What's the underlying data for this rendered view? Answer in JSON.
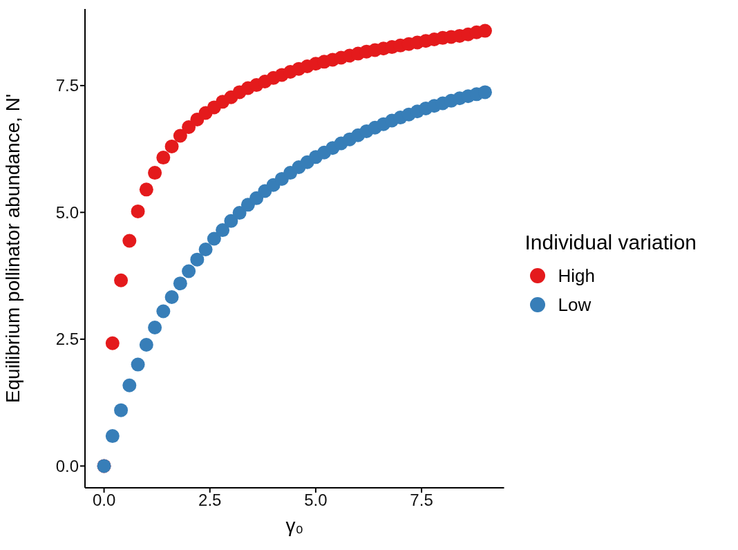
{
  "chart_data": {
    "type": "scatter",
    "xlabel": "γ₀",
    "ylabel": "Equilibrium pollinator abundance, N'",
    "legend_title": "Individual variation",
    "legend": "right",
    "marker": "circle",
    "grid": false,
    "x": [
      0,
      0.2,
      0.4,
      0.6,
      0.8,
      1,
      1.2,
      1.4,
      1.6,
      1.8,
      2,
      2.2,
      2.4,
      2.6,
      2.8,
      3,
      3.2,
      3.4,
      3.6,
      3.8,
      4,
      4.2,
      4.4,
      4.6,
      4.8,
      5,
      5.2,
      5.4,
      5.6,
      5.8,
      6,
      6.2,
      6.4,
      6.6,
      6.8,
      7,
      7.2,
      7.4,
      7.6,
      7.8,
      8,
      8.2,
      8.4,
      8.6,
      8.8,
      9
    ],
    "series": [
      {
        "name": "High",
        "color": "#e41a1c",
        "values": [
          0,
          2.42,
          3.66,
          4.44,
          5.02,
          5.45,
          5.78,
          6.08,
          6.3,
          6.51,
          6.68,
          6.83,
          6.96,
          7.07,
          7.18,
          7.27,
          7.37,
          7.45,
          7.51,
          7.58,
          7.65,
          7.71,
          7.77,
          7.83,
          7.88,
          7.93,
          7.97,
          8.01,
          8.05,
          8.09,
          8.13,
          8.17,
          8.2,
          8.23,
          8.26,
          8.29,
          8.32,
          8.35,
          8.38,
          8.41,
          8.44,
          8.46,
          8.48,
          8.51,
          8.55,
          8.58
        ]
      },
      {
        "name": "Low",
        "color": "#377eb8",
        "values": [
          0,
          0.59,
          1.1,
          1.59,
          2,
          2.39,
          2.73,
          3.05,
          3.33,
          3.6,
          3.84,
          4.07,
          4.27,
          4.48,
          4.65,
          4.83,
          4.99,
          5.15,
          5.28,
          5.42,
          5.54,
          5.66,
          5.78,
          5.89,
          5.99,
          6.09,
          6.18,
          6.27,
          6.36,
          6.44,
          6.52,
          6.6,
          6.67,
          6.74,
          6.81,
          6.87,
          6.93,
          6.99,
          7.05,
          7.1,
          7.15,
          7.2,
          7.25,
          7.29,
          7.33,
          7.37
        ]
      }
    ],
    "xlim": [
      -0.45,
      9.45
    ],
    "ylim": [
      -0.43,
      9.01
    ],
    "xticks": [
      {
        "value": 0,
        "label": "0.0"
      },
      2.5,
      {
        "value": 5,
        "label": "5.0"
      },
      7.5
    ],
    "yticks": [
      {
        "value": 0,
        "label": "0.0"
      },
      2.5,
      {
        "value": 5,
        "label": "5.0"
      },
      7.5
    ]
  }
}
